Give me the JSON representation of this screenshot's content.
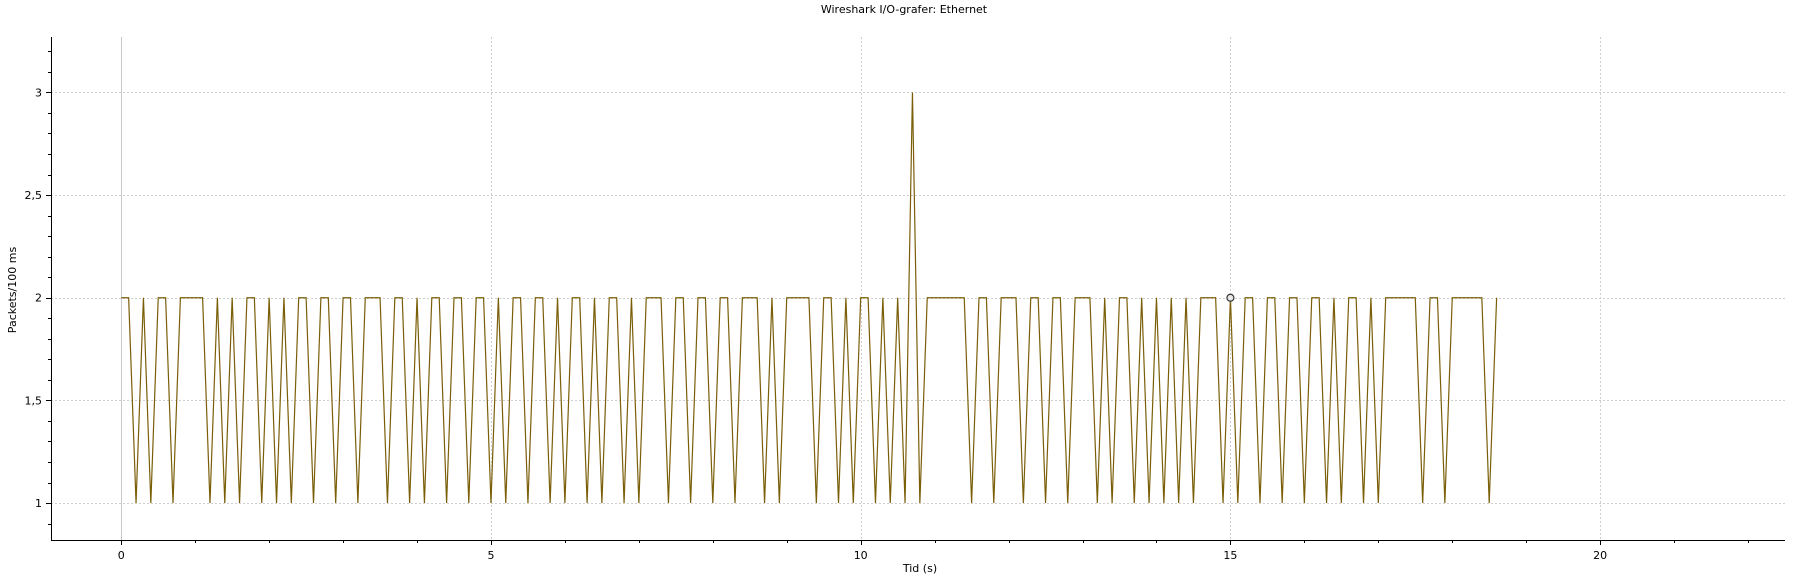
{
  "window": {
    "title": "Wireshark I/O-grafer: Ethernet"
  },
  "chart_data": {
    "type": "line",
    "title": "Wireshark I/O-grafer: Ethernet",
    "xlabel": "Tid (s)",
    "ylabel": "Packets/100 ms",
    "xlim": [
      -0.95,
      22.5
    ],
    "ylim": [
      0.82,
      3.27
    ],
    "xticks": [
      0,
      5,
      10,
      15,
      20
    ],
    "xtick_labels": [
      "0",
      "5",
      "10",
      "15",
      "20"
    ],
    "yticks": [
      1,
      1.5,
      2,
      2.5,
      3
    ],
    "ytick_labels": [
      "1",
      "1,5",
      "2",
      "2,5",
      "3"
    ],
    "grid": true,
    "series": [
      {
        "name": "Ethernet",
        "color": "#7a5e08",
        "interval_s": 0.1,
        "values": [
          2,
          2,
          1,
          2,
          1,
          2,
          2,
          1,
          2,
          2,
          2,
          2,
          1,
          2,
          1,
          2,
          1,
          2,
          2,
          1,
          2,
          1,
          2,
          1,
          2,
          2,
          1,
          2,
          2,
          1,
          2,
          2,
          1,
          2,
          2,
          2,
          1,
          2,
          2,
          1,
          2,
          1,
          2,
          2,
          1,
          2,
          2,
          1,
          2,
          2,
          1,
          2,
          1,
          2,
          2,
          1,
          2,
          2,
          1,
          2,
          1,
          2,
          2,
          1,
          2,
          1,
          2,
          2,
          1,
          2,
          1,
          2,
          2,
          2,
          1,
          2,
          2,
          1,
          2,
          2,
          1,
          2,
          2,
          1,
          2,
          2,
          2,
          1,
          2,
          1,
          2,
          2,
          2,
          2,
          1,
          2,
          2,
          1,
          2,
          1,
          2,
          2,
          1,
          2,
          1,
          2,
          1,
          3,
          1,
          2,
          2,
          2,
          2,
          2,
          2,
          1,
          2,
          2,
          1,
          2,
          2,
          2,
          1,
          2,
          2,
          1,
          2,
          2,
          1,
          2,
          2,
          2,
          1,
          2,
          1,
          2,
          2,
          1,
          2,
          1,
          2,
          1,
          2,
          1,
          2,
          1,
          2,
          2,
          2,
          1,
          2,
          1,
          2,
          2,
          1,
          2,
          2,
          1,
          2,
          2,
          1,
          2,
          2,
          1,
          2,
          1,
          2,
          2,
          1,
          2,
          1,
          2,
          2,
          2,
          2,
          2,
          1,
          2,
          2,
          1,
          2,
          2,
          2,
          2,
          2,
          1,
          2
        ],
        "marker": {
          "x": 15.0,
          "y": 2
        }
      }
    ]
  }
}
